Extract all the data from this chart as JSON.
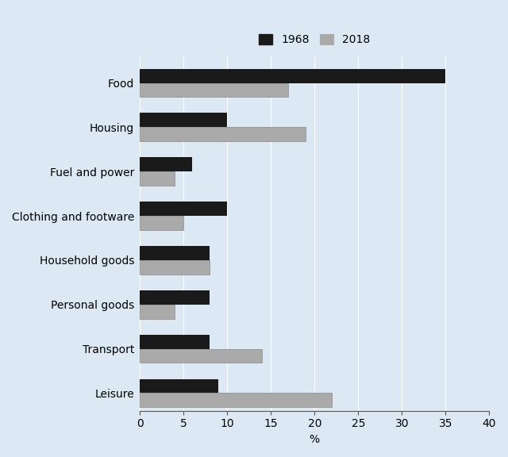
{
  "categories": [
    "Food",
    "Housing",
    "Fuel and power",
    "Clothing and footware",
    "Household goods",
    "Personal goods",
    "Transport",
    "Leisure"
  ],
  "values_1968": [
    35,
    10,
    6,
    10,
    8,
    8,
    8,
    9
  ],
  "values_2018": [
    17,
    19,
    4,
    5,
    8,
    4,
    14,
    22
  ],
  "color_1968": "#1a1a1a",
  "color_2018": "#aaaaaa",
  "color_2018_edge": "#888888",
  "xlabel": "%",
  "xlim": [
    0,
    40
  ],
  "xticks": [
    0,
    5,
    10,
    15,
    20,
    25,
    30,
    35,
    40
  ],
  "background_color": "#dce9f5",
  "bar_height": 0.32,
  "legend_labels": [
    "1968",
    "2018"
  ],
  "tick_fontsize": 10,
  "label_fontsize": 10,
  "grid_color": "#ffffff",
  "spine_color": "#555555"
}
